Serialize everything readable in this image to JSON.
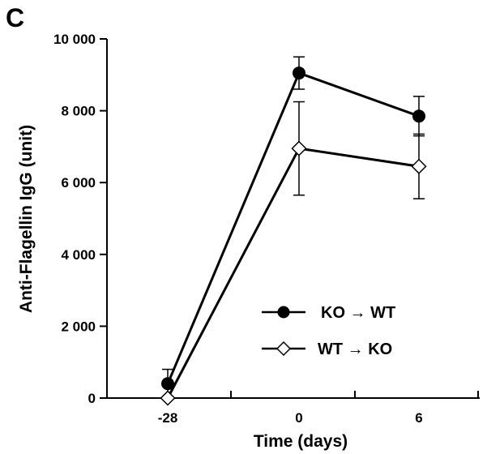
{
  "panel_label": "C",
  "chart_data": {
    "type": "line",
    "xlabel": "Time (days)",
    "ylabel": "Anti-Flagellin IgG (unit)",
    "x": [
      -28,
      0,
      6
    ],
    "x_tick_labels": [
      "-28",
      "0",
      "6"
    ],
    "ylim": [
      0,
      10000
    ],
    "y_ticks": [
      0,
      2000,
      4000,
      6000,
      8000,
      10000
    ],
    "y_tick_labels": [
      "0",
      "2 000",
      "4 000",
      "6 000",
      "8 000",
      "10 000"
    ],
    "grid": false,
    "legend_position": "bottom-right",
    "series": [
      {
        "name": "KO → WT",
        "marker": "filled-circle",
        "color": "#000000",
        "values": [
          400,
          9050,
          7850
        ],
        "errors": [
          400,
          450,
          550
        ]
      },
      {
        "name": "WT → KO",
        "marker": "open-diamond",
        "color": "#000000",
        "values": [
          0,
          6950,
          6450
        ],
        "errors": [
          0,
          1300,
          900
        ]
      }
    ]
  }
}
